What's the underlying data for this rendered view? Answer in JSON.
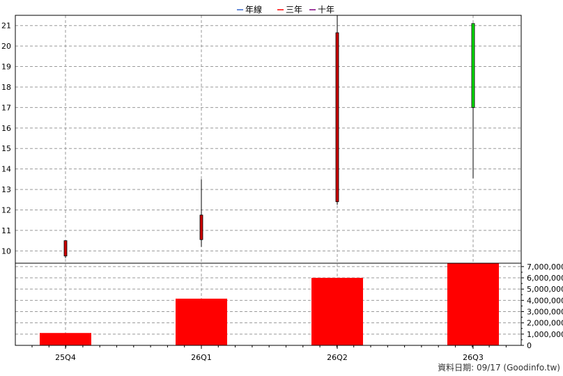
{
  "legend": [
    {
      "label": "年線",
      "color": "#3366cc"
    },
    {
      "label": "三年",
      "color": "#ff0000"
    },
    {
      "label": "十年",
      "color": "#800080"
    }
  ],
  "footer": {
    "date_text": "資料日期: 09/17",
    "source_text": "(Goodinfo.tw)"
  },
  "chart_data": [
    {
      "type": "candlestick",
      "categories": [
        "25Q4",
        "26Q1",
        "26Q2",
        "26Q3"
      ],
      "ylim": [
        9.4,
        21.5
      ],
      "yticks": [
        10,
        11,
        12,
        13,
        14,
        15,
        16,
        17,
        18,
        19,
        20,
        21
      ],
      "grid": true,
      "candles": [
        {
          "open": 10.5,
          "close": 9.75,
          "high": 10.5,
          "low": 9.65,
          "color": "#cc0000"
        },
        {
          "open": 11.75,
          "close": 10.55,
          "high": 13.5,
          "low": 10.2,
          "color": "#cc0000"
        },
        {
          "open": 20.65,
          "close": 12.4,
          "high": 21.5,
          "low": 12.25,
          "color": "#cc0000"
        },
        {
          "open": 21.1,
          "close": 17.0,
          "high": 21.1,
          "low": 13.55,
          "color": "#00dd00"
        }
      ]
    },
    {
      "type": "bar",
      "categories": [
        "25Q4",
        "26Q1",
        "26Q2",
        "26Q3"
      ],
      "values": [
        1100000,
        4150000,
        6000000,
        7300000
      ],
      "ylim": [
        0,
        7300000
      ],
      "yticks": [
        0,
        1000000,
        2000000,
        3000000,
        4000000,
        5000000,
        6000000,
        7000000
      ],
      "ytick_labels": [
        "0",
        "1,000,000",
        "2,000,000",
        "3,000,000",
        "4,000,000",
        "5,000,000",
        "6,000,000",
        "7,000,000"
      ],
      "bar_color": "#ff0000",
      "axis_side": "right"
    }
  ]
}
